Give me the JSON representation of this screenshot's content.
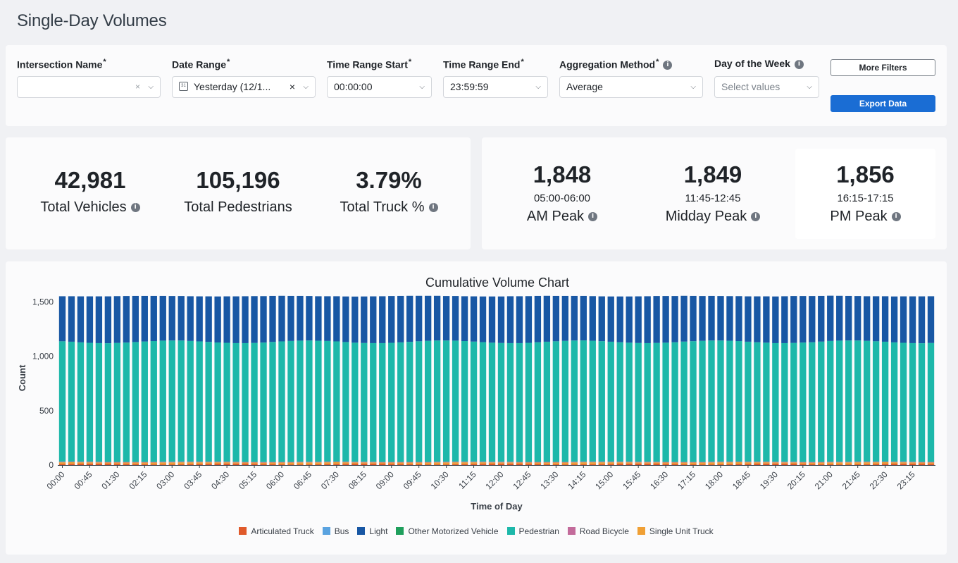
{
  "page": {
    "title": "Single-Day Volumes"
  },
  "filters": {
    "intersection": {
      "label": "Intersection Name",
      "value": ""
    },
    "date_range": {
      "label": "Date Range",
      "value": "Yesterday (12/1..."
    },
    "time_start": {
      "label": "Time Range Start",
      "value": "00:00:00"
    },
    "time_end": {
      "label": "Time Range End",
      "value": "23:59:59"
    },
    "aggregation": {
      "label": "Aggregation Method",
      "value": "Average"
    },
    "day_of_week": {
      "label": "Day of the Week",
      "placeholder": "Select values"
    },
    "required_mark": "*",
    "info_glyph": "i",
    "more_filters_label": "More Filters",
    "export_label": "Export Data"
  },
  "stats": {
    "total_vehicles": {
      "value": "42,981",
      "label": "Total Vehicles"
    },
    "total_pedestrians": {
      "value": "105,196",
      "label": "Total Pedestrians"
    },
    "total_truck_pct": {
      "value": "3.79%",
      "label": "Total Truck %"
    }
  },
  "peaks": {
    "am": {
      "value": "1,848",
      "time": "05:00-06:00",
      "label": "AM Peak"
    },
    "midday": {
      "value": "1,849",
      "time": "11:45-12:45",
      "label": "Midday Peak"
    },
    "pm": {
      "value": "1,856",
      "time": "16:15-17:15",
      "label": "PM Peak"
    }
  },
  "colors": {
    "articulated_truck": "#e05a2b",
    "bus": "#5aa3e0",
    "light": "#1857a4",
    "other_motorized": "#1f9f5c",
    "pedestrian": "#1db8aa",
    "road_bicycle": "#c36b9b",
    "single_unit_truck": "#f0a035"
  },
  "chart_data": {
    "type": "bar",
    "stacked": true,
    "title": "Cumulative Volume Chart",
    "xlabel": "Time of Day",
    "ylabel": "Count",
    "ylim": [
      0,
      1600
    ],
    "yticks": [
      0,
      500,
      1000,
      1500
    ],
    "ytick_labels": [
      "0",
      "500",
      "1,000",
      "1,500"
    ],
    "interval": "15 min",
    "categories_shown": [
      "00:00",
      "00:45",
      "01:30",
      "02:15",
      "03:00",
      "03:45",
      "04:30",
      "05:15",
      "06:00",
      "06:45",
      "07:30",
      "08:15",
      "09:00",
      "09:45",
      "10:30",
      "11:15",
      "12:00",
      "12:45",
      "13:30",
      "14:15",
      "15:00",
      "15:45",
      "16:30",
      "17:15",
      "18:00",
      "18:45",
      "19:30",
      "20:15",
      "21:00",
      "21:45",
      "22:30",
      "23:15"
    ],
    "series": [
      {
        "name": "Articulated Truck",
        "approx_value_per_interval": 10
      },
      {
        "name": "Bus",
        "approx_value_per_interval": 2
      },
      {
        "name": "Light",
        "approx_value_per_interval": 420
      },
      {
        "name": "Other Motorized Vehicle",
        "approx_value_per_interval": 2
      },
      {
        "name": "Pedestrian",
        "approx_value_per_interval": 1100
      },
      {
        "name": "Road Bicycle",
        "approx_value_per_interval": 5
      },
      {
        "name": "Single Unit Truck",
        "approx_value_per_interval": 14
      }
    ],
    "stack_order_bottom_to_top": [
      "Articulated Truck",
      "Single Unit Truck",
      "Road Bicycle",
      "Other Motorized Vehicle",
      "Bus",
      "Pedestrian",
      "Light"
    ],
    "total_per_interval_range": [
      1545,
      1570
    ],
    "legend_position": "bottom"
  }
}
